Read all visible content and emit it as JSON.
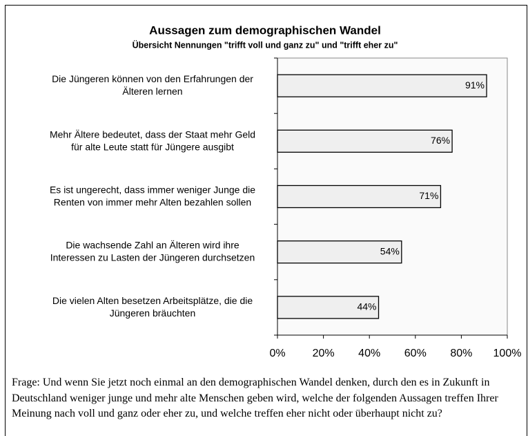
{
  "chart_data": {
    "type": "bar",
    "orientation": "horizontal",
    "title": "Aussagen zum demographischen Wandel",
    "subtitle": "Übersicht Nennungen \"trifft voll und ganz zu\" und \"trifft eher zu\"",
    "categories": [
      "Die Jüngeren können von den Erfahrungen der\nÄlteren lernen",
      "Mehr Ältere bedeutet, dass der Staat mehr Geld\nfür alte Leute statt für Jüngere ausgibt",
      "Es ist ungerecht, dass immer weniger Junge die\nRenten von immer mehr Alten bezahlen sollen",
      "Die wachsende Zahl an Älteren wird ihre\nInteressen zu Lasten der Jüngeren durchsetzen",
      "Die vielen Alten besetzen Arbeitsplätze, die die\nJüngeren bräuchten"
    ],
    "values": [
      91,
      76,
      71,
      54,
      44
    ],
    "value_labels": [
      "91%",
      "76%",
      "71%",
      "54%",
      "44%"
    ],
    "color": "#efefef",
    "xlim": [
      0,
      100
    ],
    "xticks": [
      {
        "value": 0,
        "label": "0%"
      },
      {
        "value": 20,
        "label": "20%"
      },
      {
        "value": 40,
        "label": "40%"
      },
      {
        "value": 60,
        "label": "60%"
      },
      {
        "value": 80,
        "label": "80%"
      },
      {
        "value": 100,
        "label": "100%"
      }
    ],
    "note": "Frage: Und wenn Sie jetzt noch einmal an den demographischen Wandel denken, durch den es in Zukunft in Deutschland weniger junge und mehr alte Menschen geben wird, welche der folgenden Aussagen treffen Ihrer Meinung nach voll und ganz oder eher zu, und welche treffen eher nicht oder überhaupt nicht zu?"
  }
}
